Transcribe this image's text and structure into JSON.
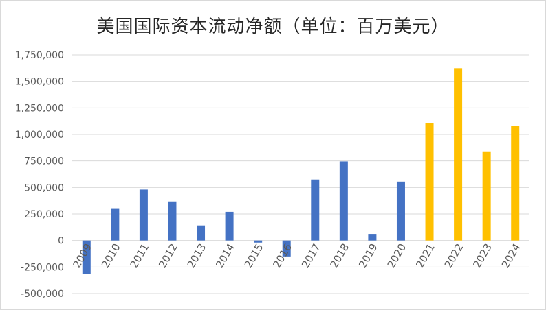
{
  "chart_data": {
    "type": "bar",
    "title": "美国国际资本流动净额（单位：百万美元）",
    "xlabel": "",
    "ylabel": "",
    "categories": [
      "2009",
      "2010",
      "2011",
      "2012",
      "2013",
      "2014",
      "2015",
      "2016",
      "2017",
      "2018",
      "2019",
      "2020",
      "2021",
      "2022",
      "2023",
      "2024"
    ],
    "values": [
      -315000,
      298000,
      480000,
      368000,
      142000,
      270000,
      -20000,
      -150000,
      575000,
      745000,
      62000,
      555000,
      1105000,
      1625000,
      840000,
      1080000
    ],
    "colors_by_index": [
      "#4472C4",
      "#4472C4",
      "#4472C4",
      "#4472C4",
      "#4472C4",
      "#4472C4",
      "#4472C4",
      "#4472C4",
      "#4472C4",
      "#4472C4",
      "#4472C4",
      "#4472C4",
      "#FFC000",
      "#FFC000",
      "#FFC000",
      "#FFC000"
    ],
    "ylim": [
      -500000,
      1750000
    ],
    "yticks": [
      -500000,
      -250000,
      0,
      250000,
      500000,
      750000,
      1000000,
      1250000,
      1500000,
      1750000
    ],
    "ytick_labels": [
      "-500,000",
      "-250,000",
      "0",
      "250,000",
      "500,000",
      "750,000",
      "1,000,000",
      "1,250,000",
      "1,500,000",
      "1,750,000"
    ],
    "grid": true,
    "legend": "none"
  }
}
